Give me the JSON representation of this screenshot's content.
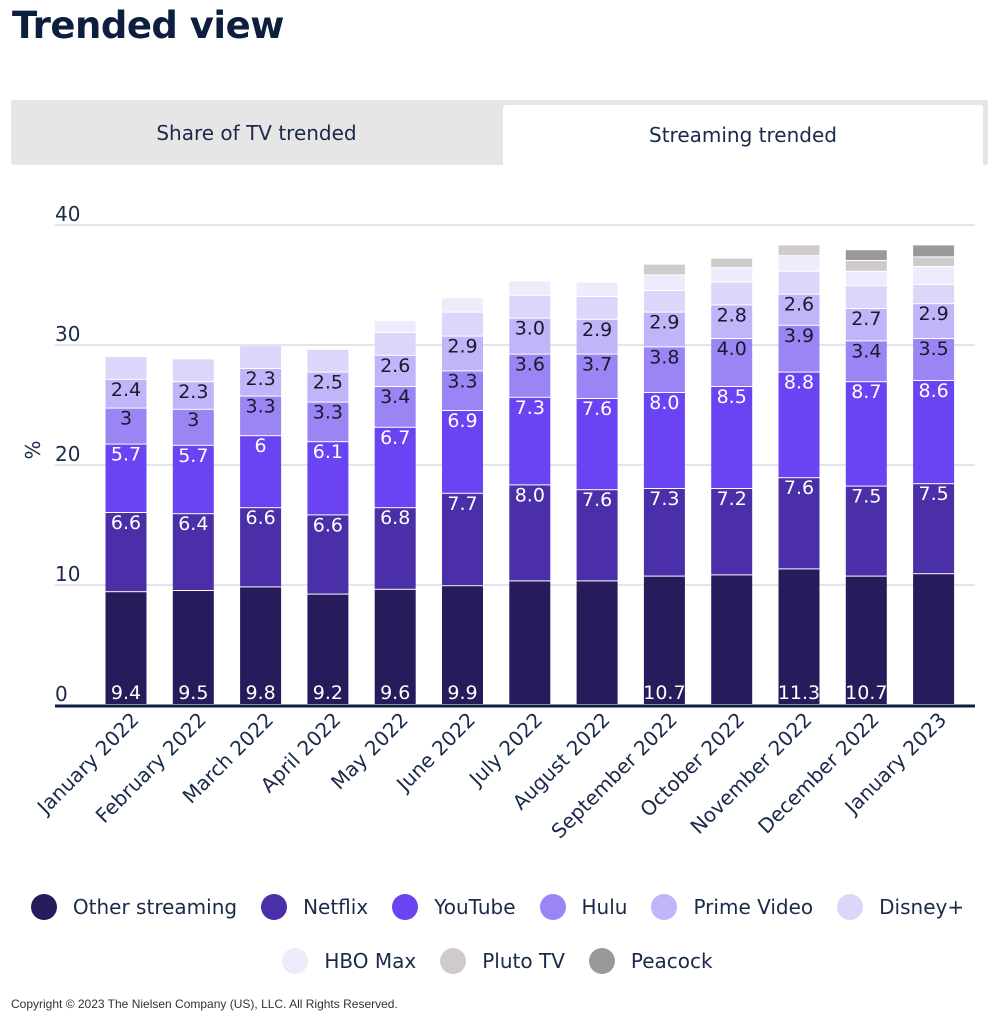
{
  "title": "Trended view",
  "tabs": [
    {
      "label": "Share of TV trended",
      "active": false
    },
    {
      "label": "Streaming trended",
      "active": true
    }
  ],
  "copyright": "Copyright © 2023 The Nielsen Company (US), LLC. All Rights Reserved.",
  "chart_data": {
    "type": "bar",
    "stacked": true,
    "ylabel": "%",
    "ylim": [
      0,
      40
    ],
    "yticks": [
      "0",
      "10",
      "20",
      "30",
      "40"
    ],
    "grid": true,
    "legend_placement": "bottom",
    "categories": [
      "January 2022",
      "February 2022",
      "March 2022",
      "April 2022",
      "May 2022",
      "June 2022",
      "July 2022",
      "August 2022",
      "September 2022",
      "October 2022",
      "November 2022",
      "December 2022",
      "January 2023"
    ],
    "series": [
      {
        "name": "Other streaming",
        "color": "#271b5c",
        "values": [
          9.4,
          9.5,
          9.8,
          9.2,
          9.6,
          9.9,
          10.3,
          10.3,
          10.7,
          10.8,
          11.3,
          10.7,
          10.9
        ],
        "labels": [
          "9.4",
          "9.5",
          "9.8",
          "9.2",
          "9.6",
          "9.9",
          "",
          "",
          "10.7",
          "",
          "11.3",
          "10.7",
          ""
        ]
      },
      {
        "name": "Netflix",
        "color": "#4a2fa8",
        "values": [
          6.6,
          6.4,
          6.6,
          6.6,
          6.8,
          7.7,
          8.0,
          7.6,
          7.3,
          7.2,
          7.6,
          7.5,
          7.5
        ],
        "labels": [
          "6.6",
          "6.4",
          "6.6",
          "6.6",
          "6.8",
          "7.7",
          "8.0",
          "7.6",
          "7.3",
          "7.2",
          "7.6",
          "7.5",
          "7.5"
        ]
      },
      {
        "name": "YouTube",
        "color": "#6a43f3",
        "values": [
          5.7,
          5.7,
          6,
          6.1,
          6.7,
          6.9,
          7.3,
          7.6,
          8.0,
          8.5,
          8.8,
          8.7,
          8.6
        ],
        "labels": [
          "5.7",
          "5.7",
          "6",
          "6.1",
          "6.7",
          "6.9",
          "7.3",
          "7.6",
          "8.0",
          "8.5",
          "8.8",
          "8.7",
          "8.6"
        ]
      },
      {
        "name": "Hulu",
        "color": "#9b85f4",
        "values": [
          3,
          3,
          3.3,
          3.3,
          3.4,
          3.3,
          3.6,
          3.7,
          3.8,
          4.0,
          3.9,
          3.4,
          3.5
        ],
        "labels": [
          "3",
          "3",
          "3.3",
          "3.3",
          "3.4",
          "3.3",
          "3.6",
          "3.7",
          "3.8",
          "4.0",
          "3.9",
          "3.4",
          "3.5"
        ]
      },
      {
        "name": "Prime Video",
        "color": "#c0b5f8",
        "values": [
          2.4,
          2.3,
          2.3,
          2.5,
          2.6,
          2.9,
          3.0,
          2.9,
          2.9,
          2.8,
          2.6,
          2.7,
          2.9
        ],
        "labels": [
          "2.4",
          "2.3",
          "2.3",
          "2.5",
          "2.6",
          "2.9",
          "3.0",
          "2.9",
          "2.9",
          "2.8",
          "2.6",
          "2.7",
          "2.9"
        ]
      },
      {
        "name": "Disney+",
        "color": "#dcd6fb",
        "values": [
          1.9,
          1.9,
          1.9,
          1.9,
          1.9,
          2.0,
          1.9,
          1.9,
          1.8,
          1.9,
          1.9,
          1.9,
          1.6
        ],
        "labels": [
          "",
          "",
          "",
          "",
          "",
          "",
          "",
          "",
          "",
          "",
          "",
          "",
          ""
        ]
      },
      {
        "name": "HBO Max",
        "color": "#eeebfd",
        "values": [
          0,
          0,
          0,
          0,
          1.0,
          1.2,
          1.2,
          1.2,
          1.3,
          1.2,
          1.3,
          1.2,
          1.5
        ],
        "labels": [
          "",
          "",
          "",
          "",
          "",
          "",
          "",
          "",
          "",
          "",
          "",
          "",
          ""
        ]
      },
      {
        "name": "Pluto TV",
        "color": "#cfcbcb",
        "values": [
          0,
          0,
          0,
          0,
          0,
          0,
          0,
          0,
          0.9,
          0.8,
          0.9,
          0.9,
          0.8
        ],
        "labels": [
          "",
          "",
          "",
          "",
          "",
          "",
          "",
          "",
          "",
          "",
          "",
          "",
          ""
        ]
      },
      {
        "name": "Peacock",
        "color": "#999999",
        "values": [
          0,
          0,
          0,
          0,
          0,
          0,
          0,
          0,
          0,
          0,
          0,
          0.9,
          1.0
        ],
        "labels": [
          "",
          "",
          "",
          "",
          "",
          "",
          "",
          "",
          "",
          "",
          "",
          "",
          ""
        ]
      }
    ]
  }
}
